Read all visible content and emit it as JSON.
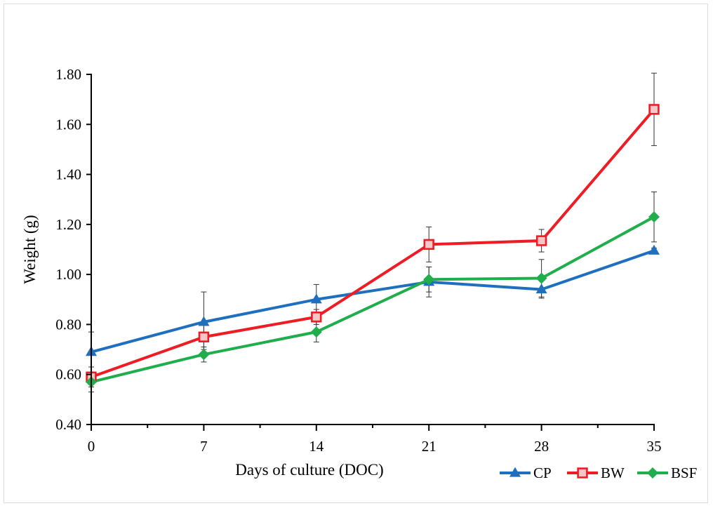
{
  "chart_data": {
    "type": "line",
    "title": "",
    "xlabel": "Days of culture (DOC)",
    "ylabel": "Weight (g)",
    "x": [
      0,
      7,
      14,
      21,
      28,
      35
    ],
    "x_tick_labels": [
      "0",
      "7",
      "14",
      "21",
      "28",
      "35"
    ],
    "xlim": [
      0,
      35
    ],
    "ylim": [
      0.4,
      1.8
    ],
    "y_ticks": [
      0.4,
      0.6,
      0.8,
      1.0,
      1.2,
      1.4,
      1.6,
      1.8
    ],
    "y_tick_labels": [
      "0.40",
      "0.60",
      "0.80",
      "1.00",
      "1.20",
      "1.40",
      "1.60",
      "1.80"
    ],
    "grid": false,
    "legend_position": "bottom-right",
    "series": [
      {
        "name": "CP",
        "color": "#1f6fbf",
        "marker": "triangle",
        "values": [
          0.69,
          0.81,
          0.9,
          0.97,
          0.94,
          1.095
        ],
        "errors": [
          0.08,
          0.12,
          0.06,
          0.06,
          0.035,
          0.01
        ]
      },
      {
        "name": "BW",
        "color": "#ee1c25",
        "marker": "square",
        "values": [
          0.59,
          0.75,
          0.83,
          1.12,
          1.135,
          1.66
        ],
        "errors": [
          0.04,
          0.05,
          0.03,
          0.07,
          0.045,
          0.145
        ]
      },
      {
        "name": "BSF",
        "color": "#1fae4b",
        "marker": "diamond",
        "values": [
          0.57,
          0.68,
          0.77,
          0.98,
          0.985,
          1.23
        ],
        "errors": [
          0.04,
          0.03,
          0.04,
          0.05,
          0.075,
          0.1
        ]
      }
    ]
  }
}
